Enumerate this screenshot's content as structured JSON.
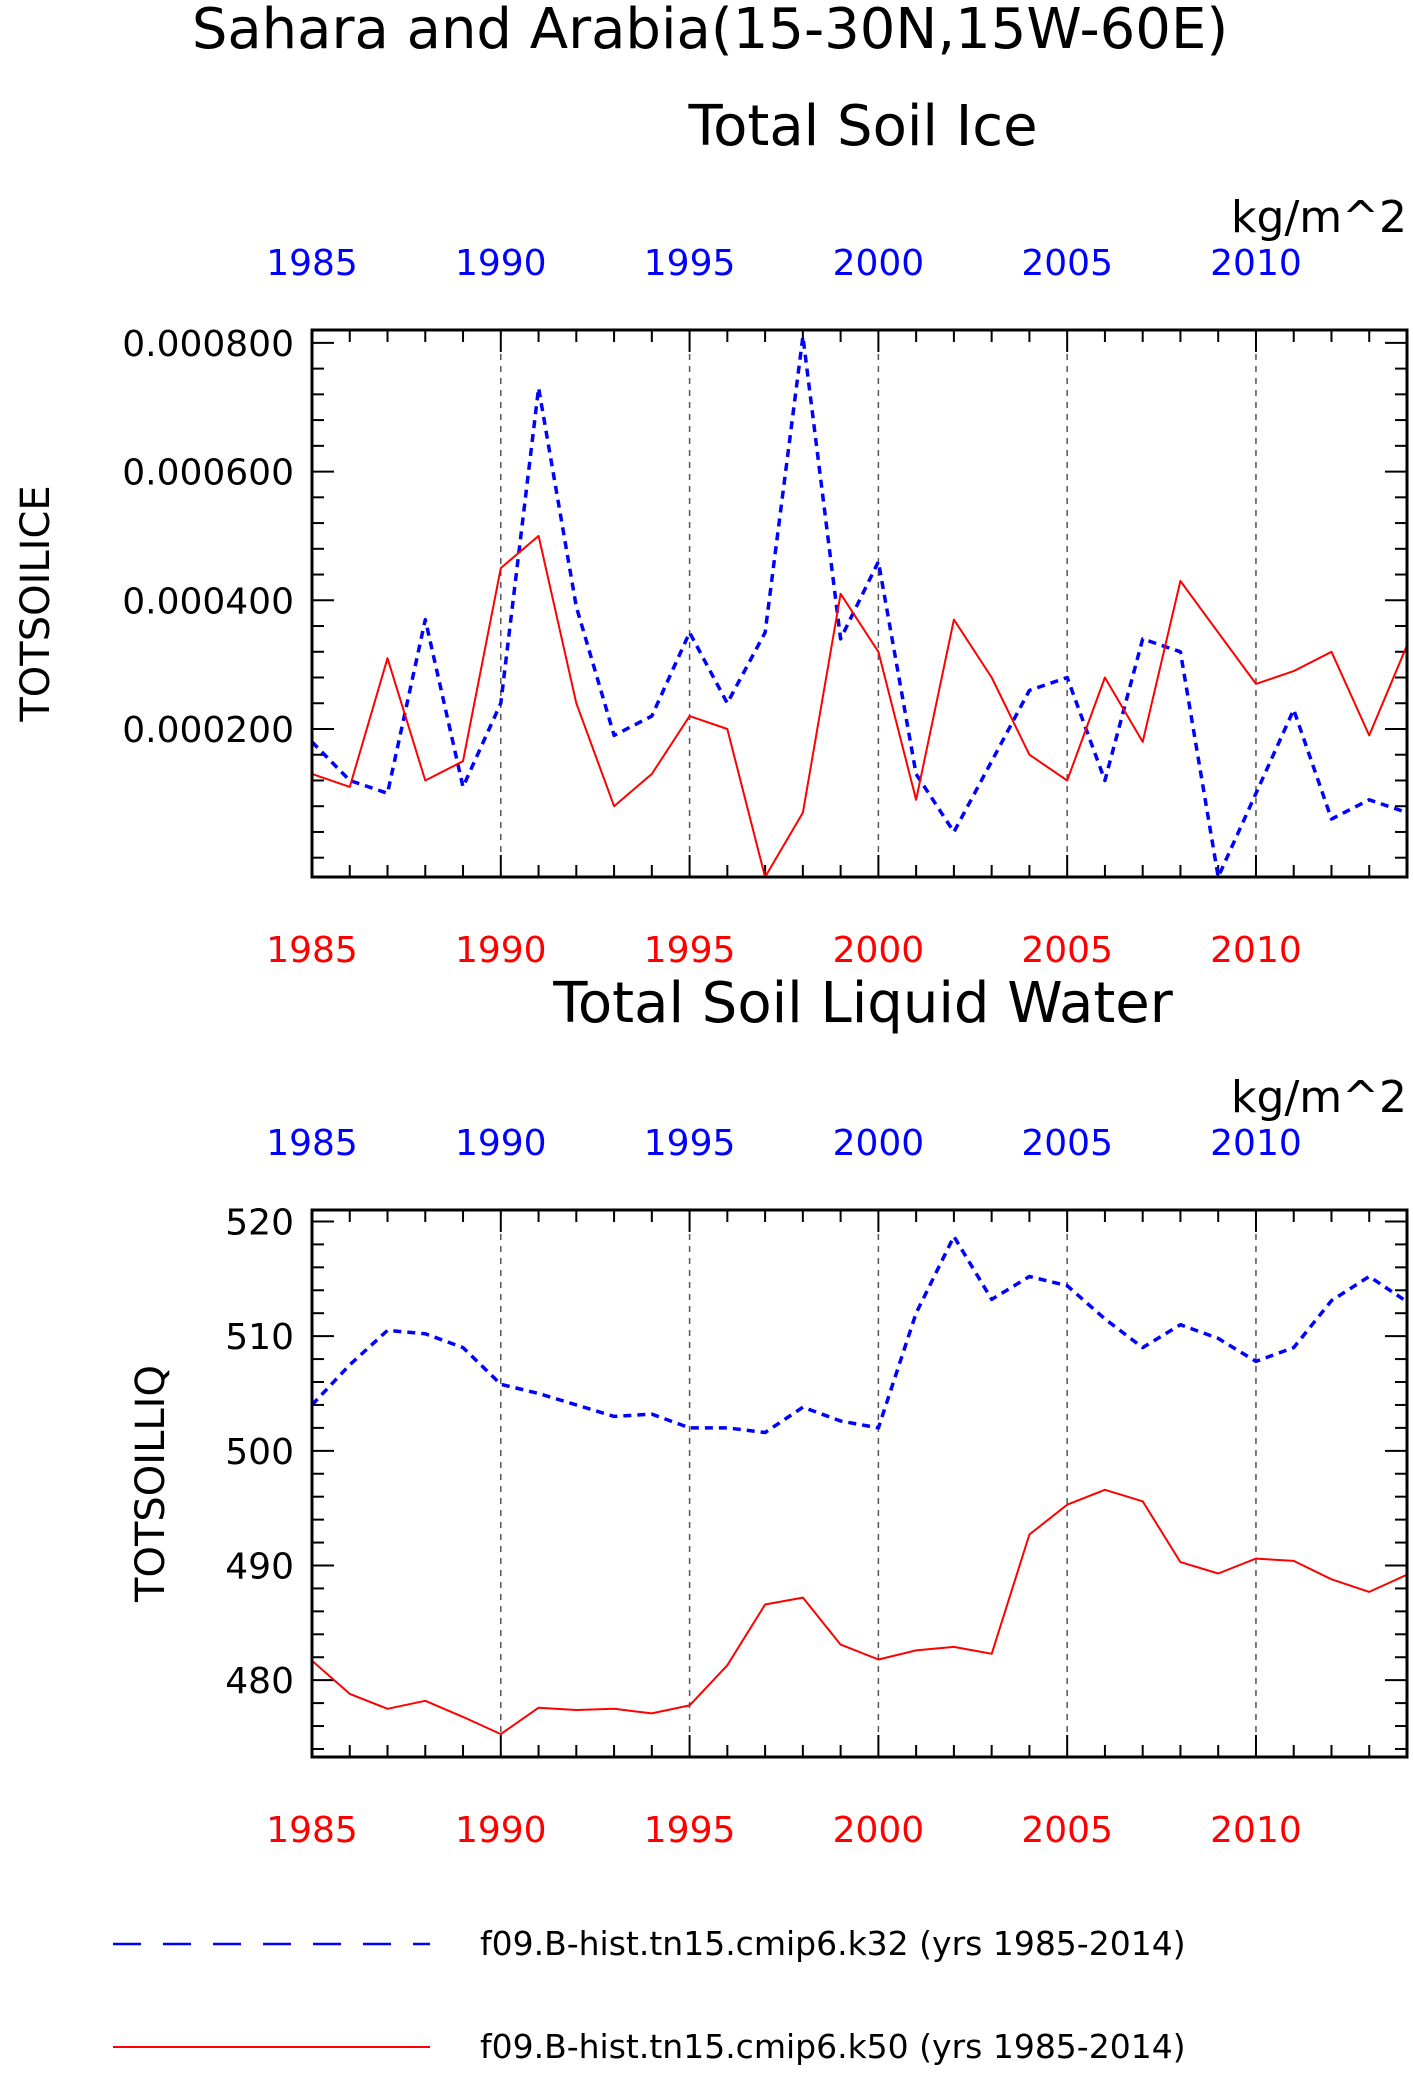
{
  "title": "Sahara and Arabia(15-30N,15W-60E)",
  "colors": {
    "series_a": "#0000ff",
    "series_b": "#ff0000",
    "axis": "#000000",
    "grid": "#555555"
  },
  "legend": [
    {
      "label": "f09.B-hist.tn15.cmip6.k32 (yrs 1985-2014)",
      "color": "#0000ff",
      "style": "dashed"
    },
    {
      "label": "f09.B-hist.tn15.cmip6.k50 (yrs 1985-2014)",
      "color": "#ff0000",
      "style": "solid"
    }
  ],
  "chart_data": [
    {
      "type": "line",
      "title": "Total Soil Ice",
      "units": "kg/m^2",
      "ylabel": "TOTSOILICE",
      "xlim": [
        1985,
        2014
      ],
      "ylim": [
        -3e-05,
        0.00082
      ],
      "yticks": [
        0.0002,
        0.0004,
        0.0006,
        0.0008
      ],
      "ytick_labels": [
        "0.000200",
        "0.000400",
        "0.000600",
        "0.000800"
      ],
      "xticks": [
        1985,
        1990,
        1995,
        2000,
        2005,
        2010
      ],
      "xtick_labels": [
        "1985",
        "1990",
        "1995",
        "2000",
        "2005",
        "2010"
      ],
      "grid": "dashed vertical lines at 1990, 1995, 2000, 2005, 2010",
      "x": [
        1985,
        1986,
        1987,
        1988,
        1989,
        1990,
        1991,
        1992,
        1993,
        1994,
        1995,
        1996,
        1997,
        1998,
        1999,
        2000,
        2001,
        2002,
        2003,
        2004,
        2005,
        2006,
        2007,
        2008,
        2009,
        2010,
        2011,
        2012,
        2013,
        2014
      ],
      "series": [
        {
          "name": "f09.B-hist.tn15.cmip6.k32 (yrs 1985-2014)",
          "color": "#0000ff",
          "style": "dashed",
          "values": [
            0.00018,
            0.00012,
            0.0001,
            0.00037,
            0.00011,
            0.00024,
            0.00073,
            0.00039,
            0.00019,
            0.00022,
            0.00035,
            0.00024,
            0.00035,
            0.00081,
            0.00034,
            0.00046,
            0.00013,
            4e-05,
            0.00015,
            0.00026,
            0.00028,
            0.00012,
            0.00034,
            0.00032,
            -3e-05,
            0.0001,
            0.00023,
            6e-05,
            9e-05,
            7e-05
          ]
        },
        {
          "name": "f09.B-hist.tn15.cmip6.k50 (yrs 1985-2014)",
          "color": "#ff0000",
          "style": "solid",
          "values": [
            0.00013,
            0.00011,
            0.00031,
            0.00012,
            0.00015,
            0.00045,
            0.0005,
            0.00024,
            8e-05,
            0.00013,
            0.00022,
            0.0002,
            -3e-05,
            7e-05,
            0.00041,
            0.00032,
            9e-05,
            0.00037,
            0.00028,
            0.00016,
            0.00012,
            0.00028,
            0.00018,
            0.00043,
            0.00035,
            0.00027,
            0.00029,
            0.00032,
            0.00019,
            0.00033
          ]
        }
      ]
    },
    {
      "type": "line",
      "title": "Total Soil Liquid Water",
      "units": "kg/m^2",
      "ylabel": "TOTSOILLIQ",
      "xlim": [
        1985,
        2014
      ],
      "ylim": [
        473.3,
        521.0
      ],
      "yticks": [
        480,
        490,
        500,
        510,
        520
      ],
      "ytick_labels": [
        "480",
        "490",
        "500",
        "510",
        "520"
      ],
      "xticks": [
        1985,
        1990,
        1995,
        2000,
        2005,
        2010
      ],
      "xtick_labels": [
        "1985",
        "1990",
        "1995",
        "2000",
        "2005",
        "2010"
      ],
      "grid": "dashed vertical lines at 1990, 1995, 2000, 2005, 2010",
      "x": [
        1985,
        1986,
        1987,
        1988,
        1989,
        1990,
        1991,
        1992,
        1993,
        1994,
        1995,
        1996,
        1997,
        1998,
        1999,
        2000,
        2001,
        2002,
        2003,
        2004,
        2005,
        2006,
        2007,
        2008,
        2009,
        2010,
        2011,
        2012,
        2013,
        2014
      ],
      "series": [
        {
          "name": "f09.B-hist.tn15.cmip6.k32 (yrs 1985-2014)",
          "color": "#0000ff",
          "style": "dashed",
          "values": [
            504.0,
            507.5,
            510.5,
            510.2,
            509.0,
            505.8,
            505.0,
            504.0,
            503.0,
            503.2,
            502.0,
            502.0,
            501.6,
            503.8,
            502.6,
            502.0,
            512.0,
            518.7,
            513.2,
            515.2,
            514.4,
            511.5,
            509.0,
            511.0,
            509.8,
            507.8,
            509.0,
            513.1,
            515.2,
            513.0
          ]
        },
        {
          "name": "f09.B-hist.tn15.cmip6.k50 (yrs 1985-2014)",
          "color": "#ff0000",
          "style": "solid",
          "values": [
            481.7,
            478.8,
            477.5,
            478.2,
            476.8,
            475.3,
            477.6,
            477.4,
            477.5,
            477.1,
            477.8,
            481.3,
            486.6,
            487.2,
            483.1,
            481.8,
            482.6,
            482.9,
            482.3,
            492.7,
            495.3,
            496.6,
            495.6,
            490.3,
            489.3,
            490.6,
            490.4,
            488.8,
            487.7,
            489.2
          ]
        }
      ]
    }
  ]
}
